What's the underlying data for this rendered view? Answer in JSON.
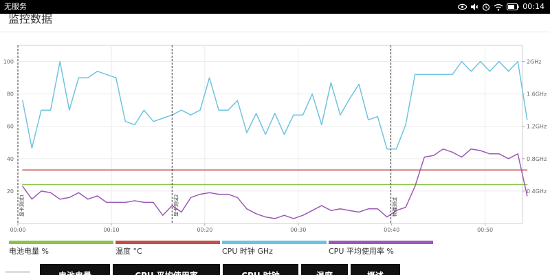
{
  "status_bar": {
    "carrier": "无服务",
    "time": "00:14",
    "icons": [
      "eye-icon",
      "mute-icon",
      "alarm-icon",
      "wifi-icon",
      "battery-icon"
    ]
  },
  "header": {
    "title": "监控数据"
  },
  "chart_data": {
    "type": "line",
    "title": "",
    "x_ticks": [
      "00:00",
      "00:10",
      "00:20",
      "00:30",
      "00:40",
      "00:50"
    ],
    "xlim_seconds": [
      0,
      54
    ],
    "y_left": {
      "ticks": [
        20,
        40,
        60,
        80,
        100
      ],
      "ylim": [
        0,
        110
      ]
    },
    "y_right": {
      "ticks": [
        "0.4GHz",
        "0.8GHz",
        "1.2GHz",
        "1.6GHz",
        "2GHz"
      ],
      "ylim_ghz": [
        0,
        2.2
      ]
    },
    "grid": true,
    "markers": [
      {
        "x": 0,
        "label": "显卡测试1"
      },
      {
        "x": 16.5,
        "label": "显卡测试2"
      },
      {
        "x": 39.9,
        "label": "物理测试"
      }
    ],
    "series": [
      {
        "name": "电池电量 %",
        "color": "#8bc34a",
        "axis": "left",
        "x": [
          0.5,
          54.5
        ],
        "y": [
          24,
          24
        ]
      },
      {
        "name": "温度 °C",
        "color": "#c0504d",
        "axis": "left",
        "x": [
          0.5,
          54.5
        ],
        "y": [
          33,
          33
        ]
      },
      {
        "name": "CPU 时钟 GHz",
        "color": "#6fc3df",
        "axis": "right",
        "x": [
          0.5,
          1.5,
          2.5,
          3.5,
          4.5,
          5.5,
          6.5,
          7.5,
          8.5,
          9.5,
          10.5,
          11.5,
          12.5,
          13.5,
          14.5,
          15.5,
          16.5,
          17.5,
          18.5,
          19.5,
          20.5,
          21.5,
          22.5,
          23.5,
          24.5,
          25.5,
          26.5,
          27.5,
          28.5,
          29.5,
          30.5,
          31.5,
          32.5,
          33.5,
          34.5,
          35.5,
          36.5,
          37.5,
          38.5,
          39.5,
          40.5,
          41.5,
          42.5,
          43.5,
          44.5,
          45.5,
          46.5,
          47.5,
          48.5,
          49.5,
          50.5,
          51.5,
          52.5,
          53.5,
          54.5
        ],
        "y": [
          1.52,
          0.93,
          1.4,
          1.4,
          2.0,
          1.4,
          1.8,
          1.8,
          1.88,
          1.84,
          1.8,
          1.26,
          1.22,
          1.4,
          1.26,
          1.3,
          1.34,
          1.4,
          1.34,
          1.4,
          1.8,
          1.4,
          1.4,
          1.52,
          1.12,
          1.36,
          1.1,
          1.36,
          1.1,
          1.34,
          1.34,
          1.6,
          1.22,
          1.74,
          1.34,
          1.54,
          1.72,
          1.28,
          1.32,
          0.92,
          0.92,
          1.22,
          1.84,
          1.84,
          1.84,
          1.84,
          1.84,
          2.0,
          1.88,
          2.0,
          1.88,
          2.0,
          1.88,
          2.0,
          1.28
        ]
      },
      {
        "name": "CPU 平均使用率 %",
        "color": "#9b59b6",
        "axis": "left",
        "x": [
          0.5,
          1.5,
          2.5,
          3.5,
          4.5,
          5.5,
          6.5,
          7.5,
          8.5,
          9.5,
          10.5,
          11.5,
          12.5,
          13.5,
          14.5,
          15.5,
          16.5,
          17.5,
          18.5,
          19.5,
          20.5,
          21.5,
          22.5,
          23.5,
          24.5,
          25.5,
          26.5,
          27.5,
          28.5,
          29.5,
          30.5,
          31.5,
          32.5,
          33.5,
          34.5,
          35.5,
          36.5,
          37.5,
          38.5,
          39.5,
          40.5,
          41.5,
          42.5,
          43.5,
          44.5,
          45.5,
          46.5,
          47.5,
          48.5,
          49.5,
          50.5,
          51.5,
          52.5,
          53.5,
          54.5
        ],
        "y": [
          23,
          15,
          20,
          19,
          15,
          16,
          19,
          15,
          17,
          13,
          13,
          13,
          14,
          13,
          13,
          5,
          11,
          7,
          16,
          18,
          19,
          18,
          18,
          16,
          9,
          6,
          4,
          3,
          5,
          3,
          5,
          8,
          11,
          8,
          9,
          8,
          7,
          9,
          9,
          4,
          8,
          10,
          23,
          41,
          42,
          46,
          44,
          41,
          46,
          45,
          43,
          43,
          40,
          43,
          17
        ]
      }
    ]
  },
  "legend": [
    {
      "label": "电池电量 %",
      "color": "#8bc34a"
    },
    {
      "label": "温度 °C",
      "color": "#c0504d"
    },
    {
      "label": "CPU 时钟 GHz",
      "color": "#6fc3df"
    },
    {
      "label": "CPU 平均使用率 %",
      "color": "#9b59b6"
    }
  ],
  "bottom_tabs": [
    {
      "label": "电池电量"
    },
    {
      "label": "CPU 平均使用率"
    },
    {
      "label": "CPU 时钟"
    },
    {
      "label": "温度"
    },
    {
      "label": "概述"
    }
  ]
}
